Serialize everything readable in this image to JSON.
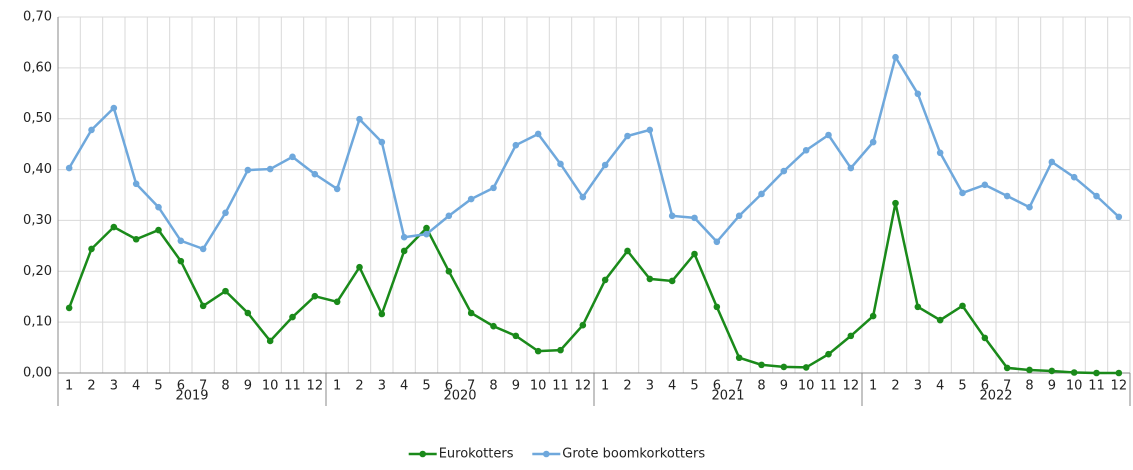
{
  "chart_data": {
    "type": "line",
    "categories": [
      "1",
      "2",
      "3",
      "4",
      "5",
      "6",
      "7",
      "8",
      "9",
      "10",
      "11",
      "12",
      "1",
      "2",
      "3",
      "4",
      "5",
      "6",
      "7",
      "8",
      "9",
      "10",
      "11",
      "12",
      "1",
      "2",
      "3",
      "4",
      "5",
      "6",
      "7",
      "8",
      "9",
      "10",
      "11",
      "12",
      "1",
      "2",
      "3",
      "4",
      "5",
      "6",
      "7",
      "8",
      "9",
      "10",
      "11",
      "12"
    ],
    "year_groups": [
      "2019",
      "2020",
      "2021",
      "2022"
    ],
    "series": [
      {
        "name": "Eurokotters",
        "color": "#1a8a1a",
        "values": [
          0.128,
          0.244,
          0.287,
          0.263,
          0.281,
          0.22,
          0.132,
          0.161,
          0.118,
          0.063,
          0.11,
          0.151,
          0.14,
          0.208,
          0.116,
          0.24,
          0.285,
          0.2,
          0.118,
          0.092,
          0.073,
          0.043,
          0.045,
          0.094,
          0.183,
          0.24,
          0.185,
          0.181,
          0.234,
          0.13,
          0.03,
          0.016,
          0.012,
          0.011,
          0.037,
          0.073,
          0.112,
          0.334,
          0.13,
          0.104,
          0.132,
          0.069,
          0.01,
          0.006,
          0.004,
          0.001,
          0.0,
          0.0
        ]
      },
      {
        "name": "Grote boomkorkotters",
        "color": "#6fa8dc",
        "values": [
          0.403,
          0.478,
          0.521,
          0.372,
          0.326,
          0.26,
          0.244,
          0.315,
          0.399,
          0.401,
          0.425,
          0.391,
          0.362,
          0.499,
          0.454,
          0.267,
          0.273,
          0.309,
          0.342,
          0.364,
          0.448,
          0.47,
          0.411,
          0.346,
          0.409,
          0.466,
          0.478,
          0.309,
          0.305,
          0.258,
          0.309,
          0.352,
          0.397,
          0.438,
          0.468,
          0.403,
          0.454,
          0.621,
          0.549,
          0.433,
          0.354,
          0.37,
          0.348,
          0.326,
          0.415,
          0.385,
          0.348,
          0.307
        ]
      }
    ],
    "ylim": [
      0,
      0.7
    ],
    "yticks": [
      {
        "value": 0,
        "label": "0,00"
      },
      {
        "value": 0.1,
        "label": "0,10"
      },
      {
        "value": 0.2,
        "label": "0,20"
      },
      {
        "value": 0.3,
        "label": "0,30"
      },
      {
        "value": 0.4,
        "label": "0,40"
      },
      {
        "value": 0.5,
        "label": "0,50"
      },
      {
        "value": 0.6,
        "label": "0,60"
      },
      {
        "value": 0.7,
        "label": "0,70"
      }
    ],
    "grid": true,
    "legend": "bottom"
  }
}
